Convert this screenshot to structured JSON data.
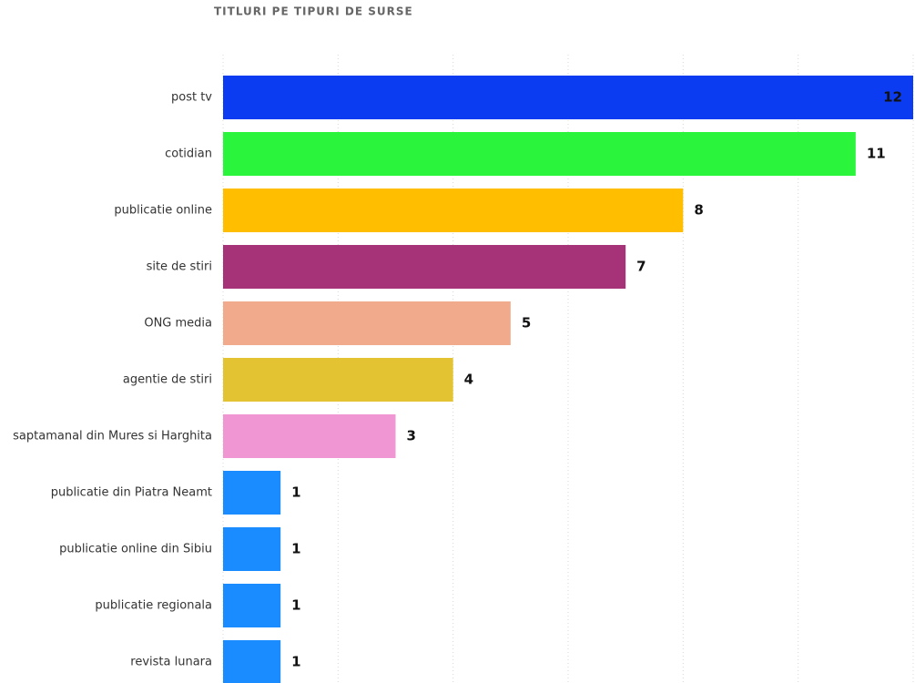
{
  "chart_data": {
    "type": "bar",
    "orientation": "horizontal",
    "title": "TITLURI PE TIPURI DE SURSE",
    "categories": [
      "post tv",
      "cotidian",
      "publicatie online",
      "site de stiri",
      "ONG media",
      "agentie de stiri",
      "saptamanal din Mures si Harghita",
      "publicatie din Piatra Neamt",
      "publicatie online din Sibiu",
      "publicatie regionala",
      "revista lunara"
    ],
    "values": [
      12,
      11,
      8,
      7,
      5,
      4,
      3,
      1,
      1,
      1,
      1
    ],
    "colors": [
      "#0b3cf2",
      "#2af53c",
      "#ffbf00",
      "#a63377",
      "#f2aa8c",
      "#e3c332",
      "#f096d2",
      "#1a8cff",
      "#1a8cff",
      "#1a8cff",
      "#1a8cff"
    ],
    "xlim": [
      0,
      12
    ],
    "xticks": [
      0,
      2,
      4,
      6,
      8,
      10,
      12
    ],
    "grid": true
  }
}
